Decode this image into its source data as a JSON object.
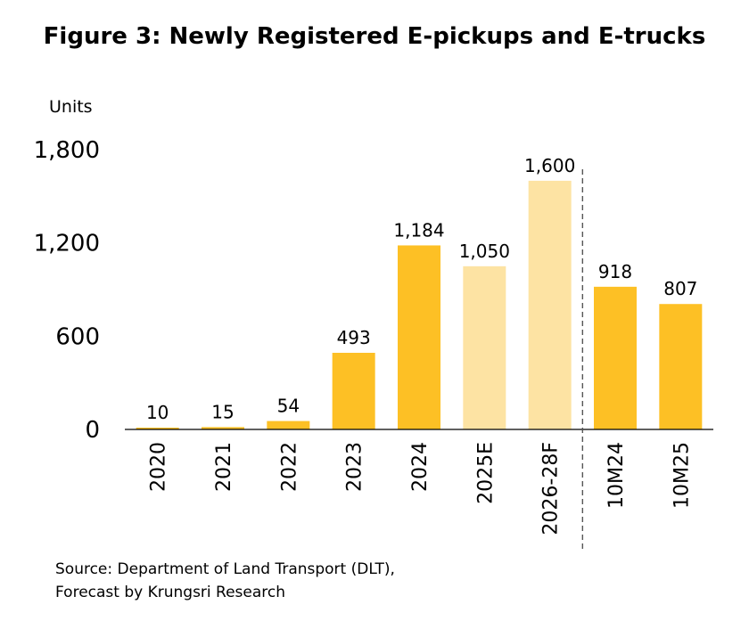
{
  "title": "Figure 3: Newly Registered E-pickups and E-trucks",
  "source_lines": [
    "Source: Department of Land Transport (DLT),",
    "Forecast by Krungsri Research"
  ],
  "colors": {
    "actual": "#FDC025",
    "forecast": "#FDE3A3"
  },
  "chart_data": {
    "type": "bar",
    "ylabel": "Units",
    "xlabel": "",
    "ylim": [
      0,
      1800
    ],
    "yticks": [
      0,
      600,
      1200,
      1800
    ],
    "ytick_labels": [
      "0",
      "600",
      "1,200",
      "1,800"
    ],
    "grid": false,
    "categories": [
      "2020",
      "2021",
      "2022",
      "2023",
      "2024",
      "2025E",
      "2026-28F",
      "10M24",
      "10M25"
    ],
    "values": [
      10,
      15,
      54,
      493,
      1184,
      1050,
      1600,
      918,
      807
    ],
    "data_labels": [
      "10",
      "15",
      "54",
      "493",
      "1,184",
      "1,050",
      "1,600",
      "918",
      "807"
    ],
    "bar_style": [
      "actual",
      "actual",
      "actual",
      "actual",
      "actual",
      "forecast",
      "forecast",
      "actual",
      "actual"
    ],
    "separator_after_index": 6
  }
}
